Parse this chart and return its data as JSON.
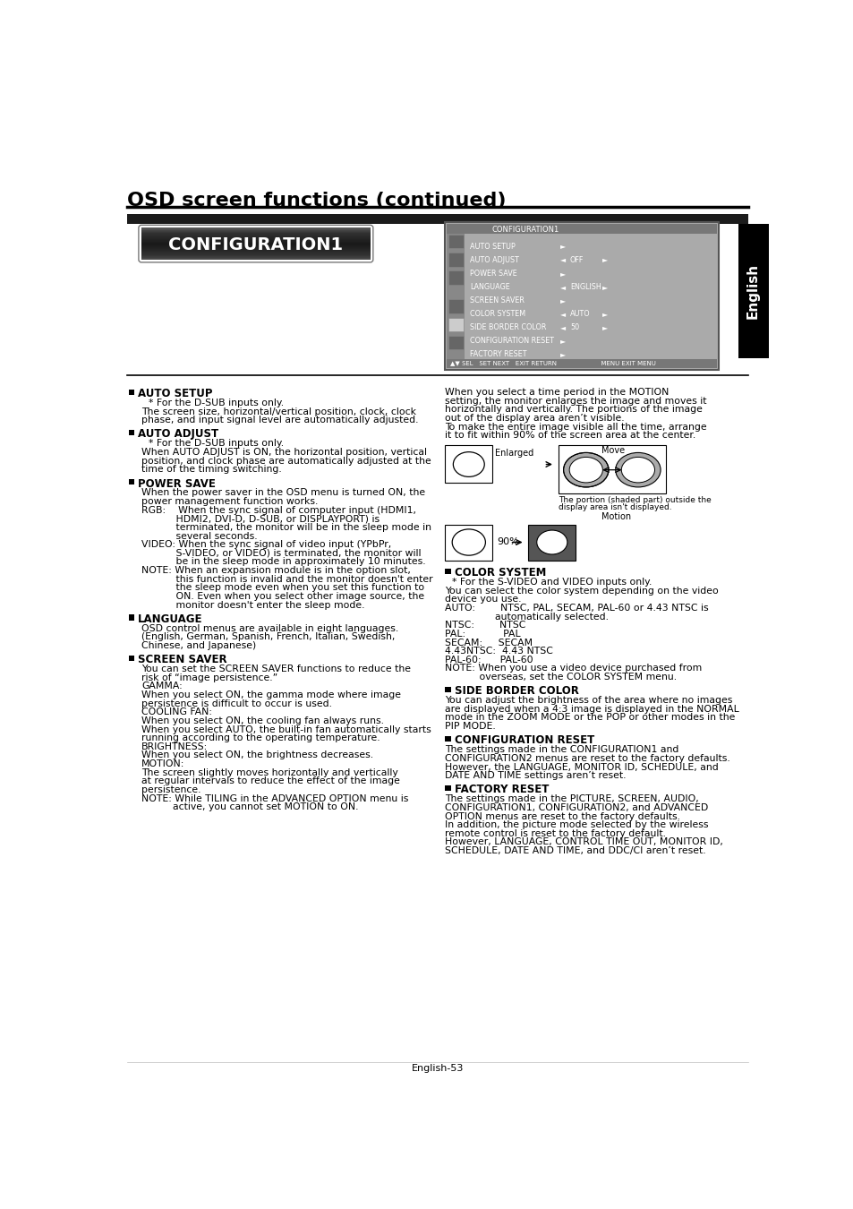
{
  "title": "OSD screen functions (continued)",
  "section_title": "CONFIGURATION1",
  "bg_color": "#ffffff",
  "page_number": "English-53",
  "sidebar_label": "English",
  "osd_menu_items": [
    {
      "name": "AUTO SETUP",
      "arrow_left": false,
      "value": "",
      "arrow_right": true
    },
    {
      "name": "AUTO ADJUST",
      "arrow_left": true,
      "value": "OFF",
      "arrow_right": true
    },
    {
      "name": "POWER SAVE",
      "arrow_left": false,
      "value": "",
      "arrow_right": true
    },
    {
      "name": "LANGUAGE",
      "arrow_left": true,
      "value": "ENGLISH",
      "arrow_right": true
    },
    {
      "name": "SCREEN SAVER",
      "arrow_left": false,
      "value": "",
      "arrow_right": true
    },
    {
      "name": "COLOR SYSTEM",
      "arrow_left": true,
      "value": "AUTO",
      "arrow_right": true
    },
    {
      "name": "SIDE BORDER COLOR",
      "arrow_left": true,
      "value": "50",
      "arrow_right": true
    },
    {
      "name": "CONFIGURATION RESET",
      "arrow_left": false,
      "value": "",
      "arrow_right": true
    },
    {
      "name": "FACTORY RESET",
      "arrow_left": false,
      "value": "",
      "arrow_right": true
    }
  ],
  "left_column_sections": [
    {
      "heading": "AUTO SETUP",
      "lines": [
        {
          "text": "* For the D-SUB inputs only.",
          "indent": 1
        },
        {
          "text": "The screen size, horizontal/vertical position, clock, clock",
          "indent": 0
        },
        {
          "text": "phase, and input signal level are automatically adjusted.",
          "indent": 0
        }
      ]
    },
    {
      "heading": "AUTO ADJUST",
      "lines": [
        {
          "text": "* For the D-SUB inputs only.",
          "indent": 1
        },
        {
          "text": "When AUTO ADJUST is ON, the horizontal position, vertical",
          "indent": 0
        },
        {
          "text": "position, and clock phase are automatically adjusted at the",
          "indent": 0
        },
        {
          "text": "time of the timing switching.",
          "indent": 0
        }
      ]
    },
    {
      "heading": "POWER SAVE",
      "lines": [
        {
          "text": "When the power saver in the OSD menu is turned ON, the",
          "indent": 0
        },
        {
          "text": "power management function works.",
          "indent": 0
        },
        {
          "text": "RGB:    When the sync signal of computer input (HDMI1,",
          "indent": 0
        },
        {
          "text": "           HDMI2, DVI-D, D-SUB, or DISPLAYPORT) is",
          "indent": 0
        },
        {
          "text": "           terminated, the monitor will be in the sleep mode in",
          "indent": 0
        },
        {
          "text": "           several seconds.",
          "indent": 0
        },
        {
          "text": "VIDEO: When the sync signal of video input (YPbPr,",
          "indent": 0
        },
        {
          "text": "           S-VIDEO, or VIDEO) is terminated, the monitor will",
          "indent": 0
        },
        {
          "text": "           be in the sleep mode in approximately 10 minutes.",
          "indent": 0
        },
        {
          "text": "NOTE: When an expansion module is in the option slot,",
          "indent": 0
        },
        {
          "text": "           this function is invalid and the monitor doesn't enter",
          "indent": 0
        },
        {
          "text": "           the sleep mode even when you set this function to",
          "indent": 0
        },
        {
          "text": "           ON. Even when you select other image source, the",
          "indent": 0
        },
        {
          "text": "           monitor doesn't enter the sleep mode.",
          "indent": 0
        }
      ]
    },
    {
      "heading": "LANGUAGE",
      "lines": [
        {
          "text": "OSD control menus are available in eight languages.",
          "indent": 0
        },
        {
          "text": "(English, German, Spanish, French, Italian, Swedish,",
          "indent": 0
        },
        {
          "text": "Chinese, and Japanese)",
          "indent": 0
        }
      ]
    },
    {
      "heading": "SCREEN SAVER",
      "lines": [
        {
          "text": "You can set the SCREEN SAVER functions to reduce the",
          "indent": 0
        },
        {
          "text": "risk of “image persistence.”",
          "indent": 0
        },
        {
          "text": "GAMMA:",
          "indent": 0
        },
        {
          "text": "When you select ON, the gamma mode where image",
          "indent": 0
        },
        {
          "text": "persistence is difficult to occur is used.",
          "indent": 0
        },
        {
          "text": "COOLING FAN:",
          "indent": 0
        },
        {
          "text": "When you select ON, the cooling fan always runs.",
          "indent": 0
        },
        {
          "text": "When you select AUTO, the built-in fan automatically starts",
          "indent": 0
        },
        {
          "text": "running according to the operating temperature.",
          "indent": 0
        },
        {
          "text": "BRIGHTNESS:",
          "indent": 0
        },
        {
          "text": "When you select ON, the brightness decreases.",
          "indent": 0
        },
        {
          "text": "MOTION:",
          "indent": 0
        },
        {
          "text": "The screen slightly moves horizontally and vertically",
          "indent": 0
        },
        {
          "text": "at regular intervals to reduce the effect of the image",
          "indent": 0
        },
        {
          "text": "persistence.",
          "indent": 0
        },
        {
          "text": "NOTE: While TILING in the ADVANCED OPTION menu is",
          "indent": 0
        },
        {
          "text": "          active, you cannot set MOTION to ON.",
          "indent": 0
        }
      ]
    }
  ],
  "right_intro_lines": [
    "When you select a time period in the MOTION",
    "setting, the monitor enlarges the image and moves it",
    "horizontally and vertically. The portions of the image",
    "out of the display area aren’t visible.",
    "To make the entire image visible all the time, arrange",
    "it to fit within 90% of the screen area at the center."
  ],
  "right_column_sections": [
    {
      "heading": "COLOR SYSTEM",
      "lines": [
        {
          "text": "* For the S-VIDEO and VIDEO inputs only.",
          "indent": 1
        },
        {
          "text": "You can select the color system depending on the video",
          "indent": 0
        },
        {
          "text": "device you use.",
          "indent": 0
        },
        {
          "text": "AUTO:        NTSC, PAL, SECAM, PAL-60 or 4.43 NTSC is",
          "indent": 0
        },
        {
          "text": "                automatically selected.",
          "indent": 0
        },
        {
          "text": "NTSC:        NTSC",
          "indent": 0
        },
        {
          "text": "PAL:            PAL",
          "indent": 0
        },
        {
          "text": "SECAM:     SECAM",
          "indent": 0
        },
        {
          "text": "4.43NTSC:  4.43 NTSC",
          "indent": 0
        },
        {
          "text": "PAL-60:      PAL-60",
          "indent": 0
        },
        {
          "text": "NOTE: When you use a video device purchased from",
          "indent": 0
        },
        {
          "text": "           overseas, set the COLOR SYSTEM menu.",
          "indent": 0
        }
      ]
    },
    {
      "heading": "SIDE BORDER COLOR",
      "lines": [
        {
          "text": "You can adjust the brightness of the area where no images",
          "indent": 0
        },
        {
          "text": "are displayed when a 4:3 image is displayed in the NORMAL",
          "indent": 0
        },
        {
          "text": "mode in the ZOOM MODE or the POP or other modes in the",
          "indent": 0
        },
        {
          "text": "PIP MODE.",
          "indent": 0
        }
      ]
    },
    {
      "heading": "CONFIGURATION RESET",
      "lines": [
        {
          "text": "The settings made in the CONFIGURATION1 and",
          "indent": 0
        },
        {
          "text": "CONFIGURATION2 menus are reset to the factory defaults.",
          "indent": 0
        },
        {
          "text": "However, the LANGUAGE, MONITOR ID, SCHEDULE, and",
          "indent": 0
        },
        {
          "text": "DATE AND TIME settings aren’t reset.",
          "indent": 0
        }
      ]
    },
    {
      "heading": "FACTORY RESET",
      "lines": [
        {
          "text": "The settings made in the PICTURE, SCREEN, AUDIO,",
          "indent": 0
        },
        {
          "text": "CONFIGURATION1, CONFIGURATION2, and ADVANCED",
          "indent": 0
        },
        {
          "text": "OPTION menus are reset to the factory defaults.",
          "indent": 0
        },
        {
          "text": "In addition, the picture mode selected by the wireless",
          "indent": 0
        },
        {
          "text": "remote control is reset to the factory default.",
          "indent": 0
        },
        {
          "text": "However, LANGUAGE, CONTROL TIME OUT, MONITOR ID,",
          "indent": 0
        },
        {
          "text": "SCHEDULE, DATE AND TIME, and DDC/CI aren’t reset.",
          "indent": 0
        }
      ]
    }
  ]
}
